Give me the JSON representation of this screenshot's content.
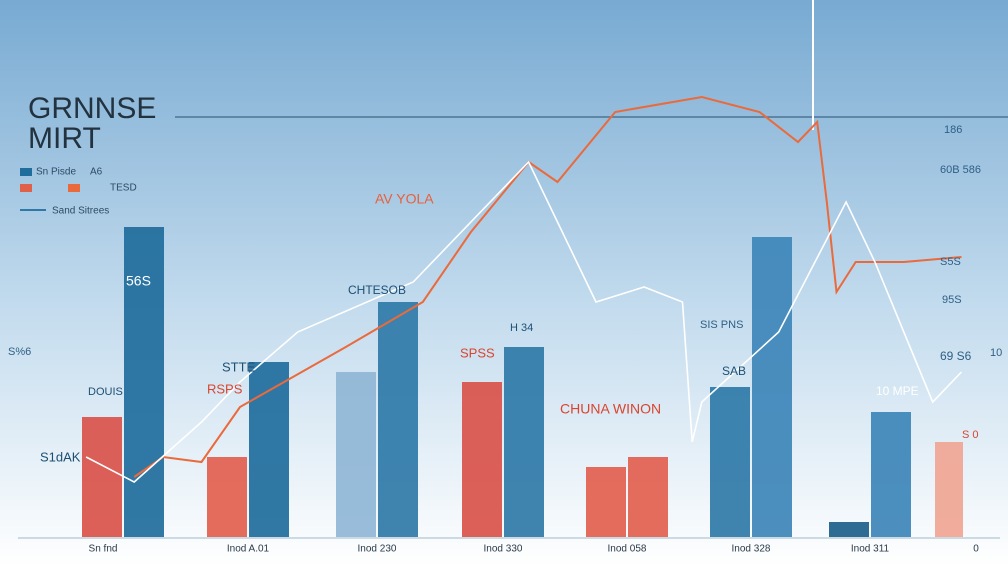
{
  "chart_data": {
    "type": "bar",
    "title": "GRNNSE",
    "subtitle": "MIRT",
    "categories": [
      "Sn fnd",
      "Inod A.01",
      "Inod 230",
      "Inod 330",
      "Inod 058",
      "Inod 328",
      "Inod 311",
      "0"
    ],
    "series": [
      {
        "name": "TESD",
        "color": "#e0604a",
        "colors": [
          "#d9534a",
          "#e2604f",
          "#8fb6d6",
          "#d9534a",
          "#e2604f",
          "#2f79a8",
          "#1d5f8a",
          "#f0a592"
        ],
        "values": [
          24,
          16,
          33,
          31,
          14,
          30,
          3,
          19
        ]
      },
      {
        "name": "Sn Pisde",
        "color": "#1f6d9c",
        "colors": [
          "#1f6d9c",
          "#1f6d9c",
          "#2f79a8",
          "#2f79a8",
          "#e2604f",
          "#3d86b8",
          "#3d86b8",
          null
        ],
        "values": [
          62,
          35,
          47,
          38,
          16,
          60,
          25,
          null
        ]
      }
    ],
    "lines": [
      {
        "name": "A6",
        "color": "#ea6a3c",
        "x": [
          10,
          13,
          17,
          21,
          32,
          40,
          45,
          51,
          54,
          60,
          69,
          75,
          79,
          81,
          82,
          83,
          85,
          90,
          96
        ],
        "values": [
          12,
          16,
          15,
          26,
          38,
          47,
          61,
          75,
          71,
          85,
          88,
          85,
          79,
          83,
          67,
          49,
          55,
          55,
          56
        ]
      },
      {
        "name": "Sand Sitrees",
        "color": "#ffffff",
        "x": [
          5,
          10,
          17,
          21,
          27,
          39,
          51,
          58,
          63,
          67,
          68,
          69,
          77,
          84,
          87,
          93,
          96
        ],
        "values": [
          16,
          11,
          23,
          31,
          41,
          51,
          75,
          47,
          50,
          47,
          19,
          27,
          41,
          67,
          55,
          27,
          33
        ]
      }
    ],
    "xlim": [
      0,
      100
    ],
    "ylim": [
      0,
      100
    ],
    "annotations": [
      "AV YOLA",
      "CHUNA WINON",
      "CHTESOB",
      "STTE",
      "RSPS",
      "SPSS",
      "H 34",
      "SAB",
      "SIS PNS",
      "10 MPE",
      "56S",
      "DOUIS",
      "S1dAK",
      "S%6",
      "186",
      "60B 586",
      "S5S",
      "95S",
      "69 S6",
      "10",
      "S 0"
    ]
  }
}
